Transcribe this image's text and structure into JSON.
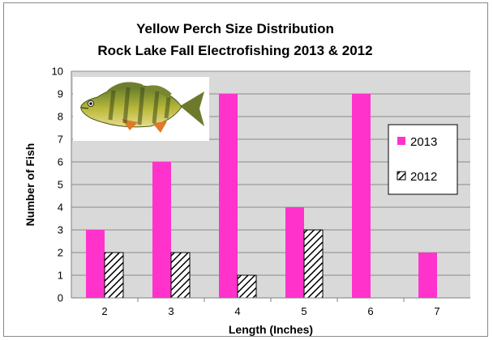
{
  "chart_data": {
    "type": "bar",
    "title": [
      "Yellow Perch Size Distribution",
      "Rock Lake Fall Electrofishing 2013 & 2012"
    ],
    "xlabel": "Length (Inches)",
    "ylabel": "Number of Fish",
    "categories": [
      "2",
      "3",
      "4",
      "5",
      "6",
      "7"
    ],
    "series": [
      {
        "name": "2013",
        "values": [
          3,
          6,
          9,
          4,
          9,
          2
        ],
        "color": "#ff33cc",
        "pattern": "solid"
      },
      {
        "name": "2012",
        "values": [
          2,
          2,
          1,
          3,
          0,
          0
        ],
        "color": "#000000",
        "pattern": "diagonal-hatch"
      }
    ],
    "ylim": [
      0,
      10
    ],
    "yticks": [
      0,
      1,
      2,
      3,
      4,
      5,
      6,
      7,
      8,
      9,
      10
    ],
    "grid": true,
    "plot_background": "#d9d9d9",
    "legend_position": "right",
    "image": "yellow-perch-fish-illustration"
  }
}
